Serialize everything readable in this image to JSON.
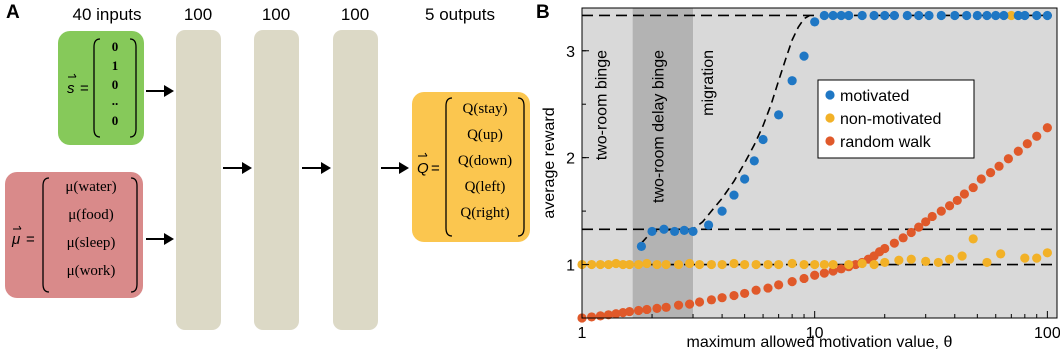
{
  "panelA": {
    "letter": "A",
    "labels": {
      "inputs": "40 inputs",
      "layer1": "100",
      "layer2": "100",
      "layer3": "100",
      "outputs": "5 outputs"
    },
    "state_vector": {
      "lhs": "s",
      "entries": [
        "0",
        "1",
        "0",
        "..",
        "0"
      ]
    },
    "motivation_vector": {
      "lhs": "μ",
      "entries": [
        "μ(water)",
        "μ(food)",
        "μ(sleep)",
        "μ(work)"
      ]
    },
    "q_vector": {
      "lhs": "Q",
      "entries": [
        "Q(stay)",
        "Q(up)",
        "Q(down)",
        "Q(left)",
        "Q(right)"
      ]
    },
    "colors": {
      "state_box": "#86c95a",
      "motivation_box": "#d98a8a",
      "q_box": "#fbc64f",
      "layer": "#dcd9c6"
    }
  },
  "panelB": {
    "letter": "B",
    "chart_data": {
      "type": "scatter",
      "xlabel": "maximum allowed motivation value, θ",
      "ylabel": "average reward",
      "xscale": "log",
      "xlim": [
        1,
        110
      ],
      "ylim": [
        0.5,
        3.4
      ],
      "xticks": [
        1,
        10,
        100
      ],
      "xtick_labels": [
        "1",
        "10",
        "100"
      ],
      "yticks": [
        1,
        2,
        3
      ],
      "ytick_labels": [
        "1",
        "2",
        "3"
      ],
      "hlines": [
        3.33,
        1.33,
        1.0
      ],
      "regions": [
        {
          "label": "two-room binge",
          "x": [
            1,
            1.65
          ],
          "color": "#d9d9d9"
        },
        {
          "label": "two-room delay binge",
          "x": [
            1.65,
            3.0
          ],
          "color": "#b3b3b3"
        },
        {
          "label": "migration",
          "x": [
            3.0,
            110
          ],
          "color": "#d9d9d9"
        }
      ],
      "fit_curve": {
        "x": [
          1.8,
          2.0,
          2.5,
          3.0,
          3.3,
          3.6,
          4.0,
          4.5,
          5.0,
          5.5,
          6.0,
          6.5,
          7.0,
          7.5,
          8.0,
          8.5,
          9.0,
          9.5
        ],
        "y": [
          1.2,
          1.31,
          1.33,
          1.33,
          1.4,
          1.5,
          1.62,
          1.78,
          1.95,
          2.12,
          2.3,
          2.5,
          2.72,
          2.92,
          3.1,
          3.22,
          3.3,
          3.33
        ]
      },
      "legend": {
        "placement": "inside, center-right"
      },
      "series": [
        {
          "name": "motivated",
          "color": "#1f77c4",
          "x": [
            1.8,
            2.0,
            2.25,
            2.5,
            2.75,
            3.0,
            3.5,
            4.0,
            4.5,
            5.0,
            5.5,
            6.0,
            7.0,
            8.0,
            9.0,
            10,
            11,
            12,
            13,
            14,
            16,
            18,
            20,
            22,
            25,
            28,
            31,
            35,
            40,
            45,
            50,
            55,
            60,
            65,
            75,
            80,
            90,
            100
          ],
          "y": [
            1.17,
            1.31,
            1.33,
            1.31,
            1.32,
            1.31,
            1.37,
            1.5,
            1.65,
            1.8,
            1.97,
            2.17,
            2.4,
            2.72,
            2.95,
            3.27,
            3.33,
            3.33,
            3.33,
            3.33,
            3.33,
            3.33,
            3.33,
            3.33,
            3.33,
            3.33,
            3.33,
            3.33,
            3.33,
            3.33,
            3.33,
            3.33,
            3.33,
            3.33,
            3.33,
            3.33,
            3.33,
            3.33
          ]
        },
        {
          "name": "non-motivated",
          "color": "#f2b127",
          "x": [
            1.0,
            1.1,
            1.2,
            1.3,
            1.4,
            1.5,
            1.6,
            1.75,
            1.9,
            2.1,
            2.3,
            2.6,
            2.9,
            3.2,
            3.6,
            4.0,
            4.5,
            5.0,
            5.6,
            6.3,
            7.0,
            8.0,
            9.0,
            10,
            11,
            12,
            14,
            16,
            18,
            20,
            23,
            26,
            30,
            34,
            38,
            43,
            48,
            55,
            63,
            70,
            80,
            90,
            100
          ],
          "y": [
            1.0,
            1.0,
            1.0,
            1.0,
            1.01,
            1.0,
            1.0,
            1.0,
            1.01,
            1.0,
            1.0,
            1.0,
            1.01,
            1.0,
            1.0,
            1.0,
            1.01,
            1.0,
            1.0,
            1.0,
            1.0,
            1.01,
            1.0,
            1.0,
            1.0,
            1.0,
            1.0,
            1.01,
            1.0,
            1.02,
            1.04,
            1.05,
            1.03,
            1.02,
            1.05,
            1.08,
            1.24,
            1.02,
            1.1,
            3.33,
            1.06,
            1.06,
            1.11
          ]
        },
        {
          "name": "random walk",
          "color": "#e0592a",
          "x": [
            1.0,
            1.1,
            1.2,
            1.3,
            1.4,
            1.5,
            1.6,
            1.75,
            1.9,
            2.1,
            2.3,
            2.6,
            2.9,
            3.2,
            3.6,
            4.0,
            4.5,
            5.0,
            5.6,
            6.3,
            7.0,
            8.0,
            9.0,
            10,
            11,
            12,
            13,
            14,
            15,
            16,
            17,
            18,
            19,
            20,
            22,
            24,
            26,
            28,
            30,
            32,
            35,
            38,
            41,
            44,
            48,
            52,
            57,
            62,
            68,
            75,
            82,
            90,
            100
          ],
          "y": [
            0.5,
            0.51,
            0.52,
            0.53,
            0.54,
            0.55,
            0.56,
            0.57,
            0.58,
            0.59,
            0.6,
            0.62,
            0.63,
            0.65,
            0.67,
            0.69,
            0.71,
            0.73,
            0.76,
            0.78,
            0.81,
            0.84,
            0.87,
            0.9,
            0.92,
            0.94,
            0.96,
            0.98,
            1.0,
            1.02,
            1.05,
            1.08,
            1.12,
            1.15,
            1.2,
            1.25,
            1.3,
            1.35,
            1.4,
            1.45,
            1.5,
            1.55,
            1.6,
            1.66,
            1.72,
            1.8,
            1.86,
            1.92,
            1.99,
            2.06,
            2.13,
            2.2,
            2.28
          ]
        }
      ]
    }
  }
}
